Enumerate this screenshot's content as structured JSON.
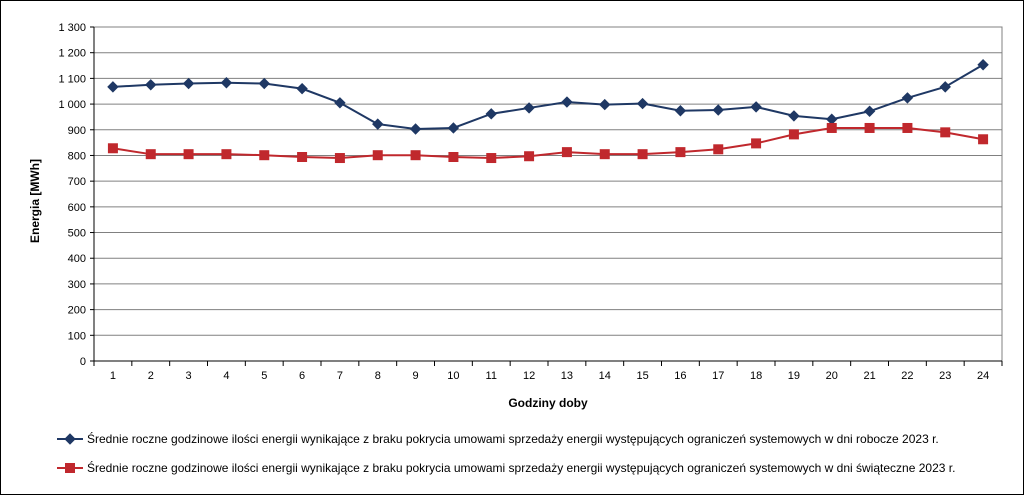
{
  "chart_data": {
    "type": "line",
    "xlabel": "Godziny doby",
    "ylabel": "Energia [MWh]",
    "categories": [
      "1",
      "2",
      "3",
      "4",
      "5",
      "6",
      "7",
      "8",
      "9",
      "10",
      "11",
      "12",
      "13",
      "14",
      "15",
      "16",
      "17",
      "18",
      "19",
      "20",
      "21",
      "22",
      "23",
      "24"
    ],
    "y_ticks": [
      "0",
      "100",
      "200",
      "300",
      "400",
      "500",
      "600",
      "700",
      "800",
      "900",
      "1 000",
      "1 100",
      "1 200",
      "1 300"
    ],
    "ylim": [
      0,
      1300
    ],
    "grid": true,
    "legend_position": "bottom",
    "series": [
      {
        "name": "Średnie roczne godzinowe ilości energii wynikające z braku pokrycia umowami sprzedaży energii występujących ograniczeń systemowych w dni robocze 2023 r.",
        "color": "#1F3864",
        "marker": "diamond",
        "values": [
          1067,
          1075,
          1080,
          1083,
          1080,
          1060,
          1005,
          922,
          903,
          907,
          962,
          985,
          1008,
          998,
          1002,
          974,
          977,
          989,
          954,
          941,
          972,
          1024,
          1067,
          1153
        ]
      },
      {
        "name": "Średnie roczne godzinowe ilości energii wynikające z braku pokrycia umowami sprzedaży energii występujących ograniczeń systemowych w dni świąteczne 2023 r.",
        "color": "#C0282D",
        "marker": "square",
        "values": [
          828,
          805,
          805,
          805,
          801,
          794,
          790,
          801,
          801,
          794,
          790,
          797,
          813,
          805,
          805,
          813,
          824,
          847,
          882,
          907,
          907,
          907,
          890,
          863
        ]
      }
    ]
  }
}
